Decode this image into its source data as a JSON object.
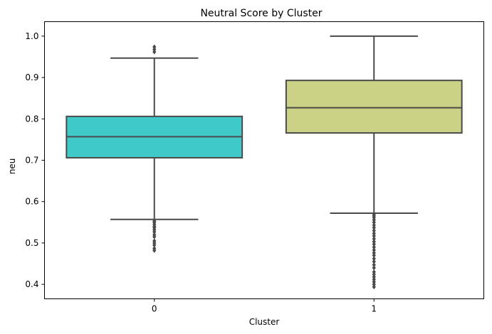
{
  "chart_data": {
    "type": "box",
    "title": "Neutral Score by Cluster",
    "xlabel": "Cluster",
    "ylabel": "neu",
    "ylim": [
      0.365,
      1.035
    ],
    "yticks": [
      0.4,
      0.5,
      0.6,
      0.7,
      0.8,
      0.9,
      1.0
    ],
    "ytick_labels": [
      "0.4",
      "0.5",
      "0.6",
      "0.7",
      "0.8",
      "0.9",
      "1.0"
    ],
    "categories": [
      "0",
      "1"
    ],
    "grid": false,
    "legend": "none",
    "boxes": [
      {
        "category": "0",
        "color": "#40c9c9",
        "q1": 0.706,
        "median": 0.757,
        "q3": 0.806,
        "whisker_low": 0.557,
        "whisker_high": 0.947,
        "outliers": [
          0.482,
          0.487,
          0.495,
          0.5,
          0.505,
          0.515,
          0.52,
          0.527,
          0.532,
          0.537,
          0.54,
          0.545,
          0.55,
          0.553,
          0.962,
          0.968,
          0.974
        ]
      },
      {
        "category": "1",
        "color": "#cbd185",
        "q1": 0.766,
        "median": 0.827,
        "q3": 0.893,
        "whisker_low": 0.572,
        "whisker_high": 1.0,
        "outliers": [
          0.394,
          0.4,
          0.406,
          0.412,
          0.418,
          0.424,
          0.43,
          0.44,
          0.447,
          0.455,
          0.462,
          0.47,
          0.476,
          0.483,
          0.49,
          0.497,
          0.503,
          0.51,
          0.517,
          0.523,
          0.53,
          0.537,
          0.543,
          0.55,
          0.556,
          0.562,
          0.566,
          0.57
        ]
      }
    ],
    "style": {
      "line_color": "#4a4a4a",
      "outlier_color": "#4a4a4a"
    }
  }
}
